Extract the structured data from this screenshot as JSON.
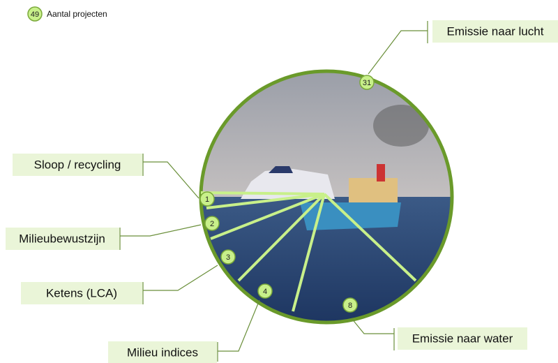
{
  "legend": {
    "count": 49,
    "label": "Aantal projecten"
  },
  "items": [
    {
      "label": "Emissie naar lucht",
      "count": 31
    },
    {
      "label": "Sloop / recycling",
      "count": 1
    },
    {
      "label": "Milieubewustzijn",
      "count": 2
    },
    {
      "label": "Ketens (LCA)",
      "count": 3
    },
    {
      "label": "Milieu indices",
      "count": 4
    },
    {
      "label": "Emissie naar water",
      "count": 8
    }
  ]
}
